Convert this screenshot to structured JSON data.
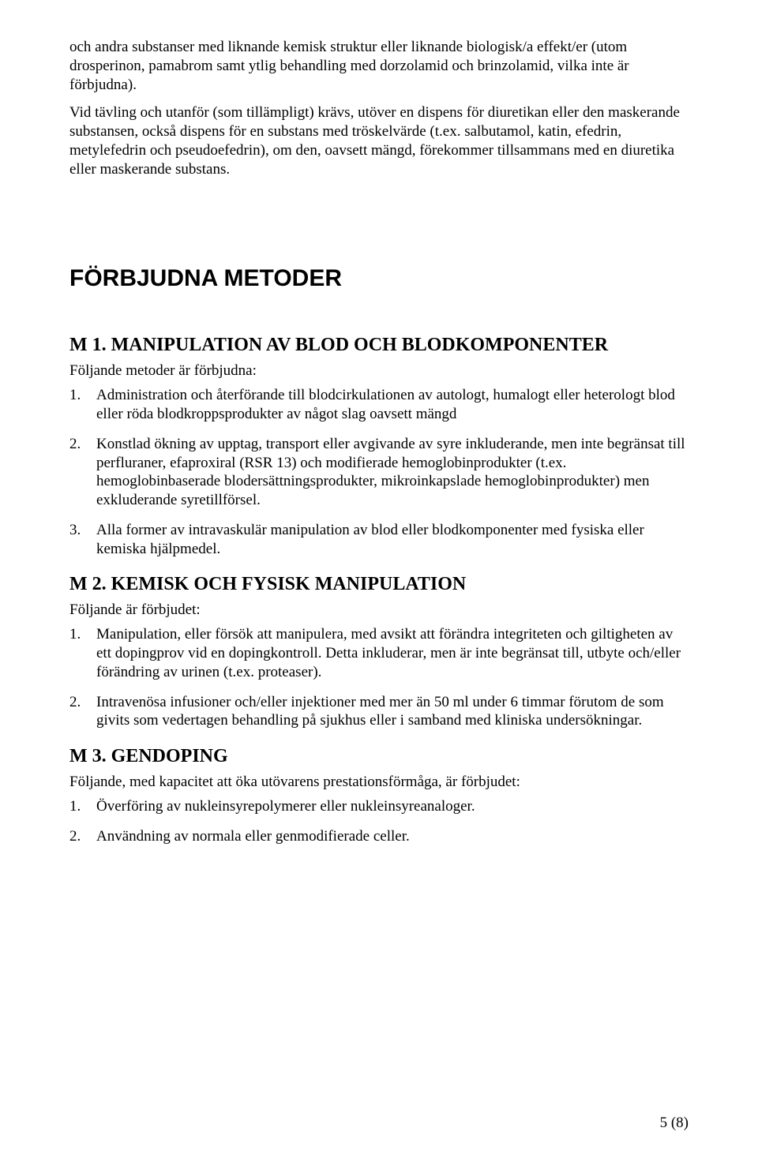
{
  "top": {
    "para1": "och andra substanser med liknande kemisk struktur eller liknande biologisk/a effekt/er (utom drosperinon, pamabrom samt ytlig behandling med dorzolamid och brinzolamid, vilka inte är förbjudna).",
    "para2": "Vid tävling och utanför (som tillämpligt) krävs, utöver en dispens för diuretikan eller den maskerande substansen, också dispens för en substans med tröskelvärde (t.ex. salbutamol, katin, efedrin, metylefedrin och pseudoefedrin), om den, oavsett mängd, förekommer tillsammans med en diuretika eller maskerande substans."
  },
  "h1": "FÖRBJUDNA METODER",
  "m1": {
    "heading": "M 1.  MANIPULATION AV BLOD OCH BLODKOMPONENTER",
    "intro": "Följande metoder är förbjudna:",
    "items": [
      {
        "n": "1.",
        "t": "Administration och återförande till blodcirkulationen av autologt, humalogt eller heterologt blod eller röda blodkroppsprodukter av något slag oavsett mängd"
      },
      {
        "n": "2.",
        "t": "Konstlad ökning av upptag, transport eller avgivande av syre inkluderande, men inte begränsat till perfluraner, efaproxiral (RSR 13) och modifierade hemoglobinprodukter (t.ex. hemoglobinbaserade blodersättningsprodukter, mikroinkapslade hemoglobinprodukter) men exkluderande syretillförsel."
      },
      {
        "n": "3.",
        "t": "Alla former av intravaskulär manipulation av blod eller blodkomponenter med fysiska eller kemiska hjälpmedel."
      }
    ]
  },
  "m2": {
    "heading": "M 2.  KEMISK OCH FYSISK MANIPULATION",
    "intro": "Följande är förbjudet:",
    "items": [
      {
        "n": "1.",
        "t": "Manipulation, eller försök att manipulera, med avsikt att förändra integriteten och giltigheten av ett dopingprov vid en dopingkontroll. Detta inkluderar, men är inte begränsat till, utbyte och/eller förändring av urinen (t.ex. proteaser)."
      },
      {
        "n": "2.",
        "t": "Intravenösa infusioner och/eller injektioner med mer än 50 ml under 6 timmar förutom de som givits som vedertagen behandling på sjukhus eller i samband med kliniska undersökningar."
      }
    ]
  },
  "m3": {
    "heading": "M 3.  GENDOPING",
    "intro": "Följande, med kapacitet att öka utövarens prestationsförmåga, är förbjudet:",
    "items": [
      {
        "n": "1.",
        "t": "Överföring av nukleinsyrepolymerer eller nukleinsyreanaloger."
      },
      {
        "n": "2.",
        "t": "Användning av normala eller genmodifierade celler."
      }
    ]
  },
  "footer": "5 (8)"
}
